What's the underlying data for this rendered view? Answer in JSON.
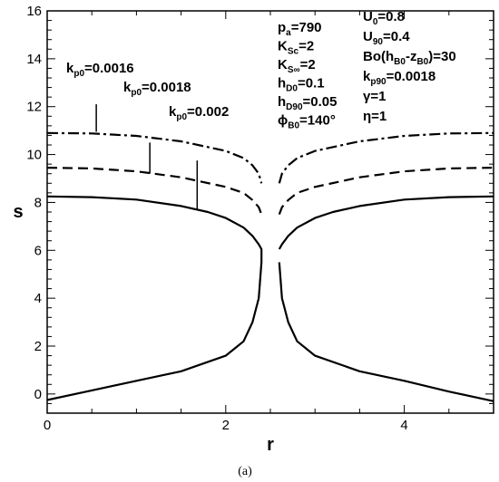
{
  "chart_data": {
    "type": "line",
    "xlabel": "r",
    "ylabel": "s",
    "xlim": [
      0,
      5
    ],
    "ylim": [
      -0.8,
      16
    ],
    "x_ticks": [
      0,
      2,
      4
    ],
    "y_ticks": [
      0,
      2,
      4,
      6,
      8,
      10,
      12,
      14,
      16
    ],
    "x_minor_step": 0.5,
    "y_minor_step": 0.4,
    "grid": false,
    "series": [
      {
        "name": "kp0=0.002",
        "style": "solid",
        "left_branch": {
          "r": [
            0,
            0.5,
            1.0,
            1.5,
            1.8,
            2.0,
            2.2,
            2.3,
            2.37,
            2.4,
            2.4,
            2.37,
            2.3,
            2.2,
            2.0,
            1.5,
            1.0,
            0.5,
            0
          ],
          "s": [
            8.25,
            8.22,
            8.12,
            7.85,
            7.6,
            7.35,
            6.95,
            6.6,
            6.25,
            6.05,
            5.5,
            4.0,
            3.0,
            2.2,
            1.6,
            0.95,
            0.55,
            0.15,
            -0.25
          ]
        },
        "right_branch": {
          "r": [
            2.6,
            2.63,
            2.7,
            2.8,
            3.0,
            3.5,
            4.0,
            4.5,
            5.0
          ],
          "s": [
            5.5,
            4.0,
            3.0,
            2.2,
            1.6,
            0.95,
            0.55,
            0.1,
            -0.3
          ]
        },
        "right_upper": {
          "r": [
            2.6,
            2.63,
            2.7,
            2.8,
            3.0,
            3.2,
            3.5,
            4.0,
            4.5,
            5.0
          ],
          "s": [
            6.05,
            6.25,
            6.6,
            6.95,
            7.35,
            7.6,
            7.85,
            8.12,
            8.22,
            8.25
          ]
        }
      },
      {
        "name": "kp0=0.0018",
        "style": "dashed",
        "left_branch": {
          "r": [
            0,
            0.5,
            1.0,
            1.5,
            2.0,
            2.2,
            2.3,
            2.37,
            2.4
          ],
          "s": [
            9.45,
            9.42,
            9.3,
            9.05,
            8.65,
            8.4,
            8.1,
            7.8,
            7.5
          ]
        },
        "right_branch": {
          "r": [
            2.6,
            2.63,
            2.7,
            2.8,
            3.0,
            3.5,
            4.0,
            4.5,
            5.0
          ],
          "s": [
            7.5,
            7.8,
            8.1,
            8.4,
            8.65,
            9.05,
            9.3,
            9.42,
            9.45
          ]
        }
      },
      {
        "name": "kp0=0.0016",
        "style": "dashdot",
        "left_branch": {
          "r": [
            0,
            0.5,
            1.0,
            1.5,
            2.0,
            2.2,
            2.3,
            2.37,
            2.4
          ],
          "s": [
            10.9,
            10.88,
            10.78,
            10.55,
            10.15,
            9.85,
            9.55,
            9.2,
            8.8
          ]
        },
        "right_branch": {
          "r": [
            2.6,
            2.63,
            2.7,
            2.8,
            3.0,
            3.5,
            4.0,
            4.5,
            5.0
          ],
          "s": [
            8.8,
            9.2,
            9.55,
            9.85,
            10.15,
            10.55,
            10.78,
            10.88,
            10.9
          ]
        }
      }
    ],
    "labels": [
      {
        "text": "k",
        "sub": "p0",
        "tail": "=0.0016"
      },
      {
        "text": "k",
        "sub": "p0",
        "tail": "=0.0018"
      },
      {
        "text": "k",
        "sub": "p0",
        "tail": "=0.002"
      }
    ],
    "leader_lines": [
      {
        "r": 0.55,
        "s_from": 12.1,
        "s_to": 10.95
      },
      {
        "r": 1.15,
        "s_from": 10.5,
        "s_to": 9.2
      },
      {
        "r": 1.68,
        "s_from": 9.75,
        "s_to": 7.7
      }
    ],
    "params_left": [
      {
        "text": "p",
        "sub": "a",
        "tail": "=790"
      },
      {
        "text": "K",
        "sub": "Sc",
        "tail": "=2"
      },
      {
        "text": "K",
        "sub": "S∞",
        "tail": "=2"
      },
      {
        "text": "h",
        "sub": "D0",
        "tail": "=0.1"
      },
      {
        "text": "h",
        "sub": "D90",
        "tail": "=0.05"
      },
      {
        "text": "ϕ",
        "sub": "B0",
        "tail": "=140°"
      }
    ],
    "params_right": [
      {
        "text": "U",
        "sub": "0",
        "tail": "=0.8"
      },
      {
        "text": "U",
        "sub": "90",
        "tail": "=0.4"
      },
      {
        "text": "Bo(h",
        "sub": "B0",
        "tail": "-z",
        "sub2": "B0",
        "tail2": ")=30"
      },
      {
        "text": "k",
        "sub": "p90",
        "tail": "=0.0018"
      },
      {
        "text": "γ",
        "sub": "",
        "tail": "=1"
      },
      {
        "text": "η",
        "sub": "",
        "tail": "=1"
      }
    ],
    "caption": "(a)"
  }
}
